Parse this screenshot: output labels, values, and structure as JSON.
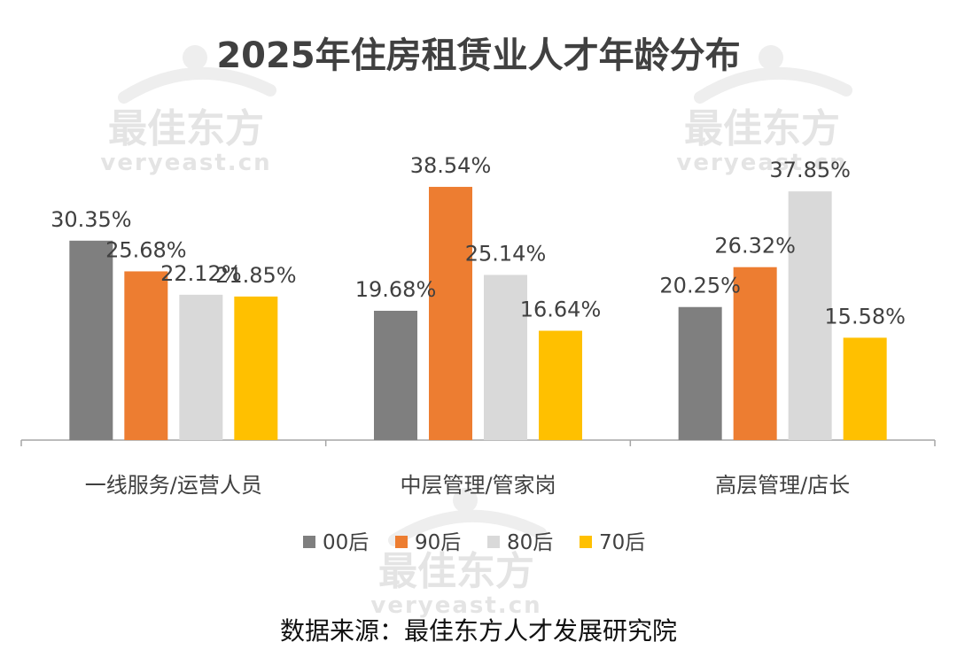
{
  "chart_data": {
    "type": "bar",
    "title": "2025年住房租赁业人才年龄分布",
    "categories": [
      "一线服务/运营人员",
      "中层管理/管家岗",
      "高层管理/店长"
    ],
    "series": [
      {
        "name": "00后",
        "color": "#7f7f7f",
        "values": [
          30.35,
          19.68,
          20.25
        ]
      },
      {
        "name": "90后",
        "color": "#ed7d31",
        "values": [
          25.68,
          38.54,
          26.32
        ]
      },
      {
        "name": "80后",
        "color": "#d9d9d9",
        "values": [
          22.12,
          25.14,
          37.85
        ]
      },
      {
        "name": "70后",
        "color": "#ffc000",
        "values": [
          21.85,
          16.64,
          15.58
        ]
      }
    ],
    "value_suffix": "%",
    "ylim": [
      0,
      50
    ],
    "grid": false,
    "legend_position": "bottom",
    "xlabel": "",
    "ylabel": ""
  },
  "watermark": {
    "text_cn": "最佳东方",
    "text_en": "veryeast.cn"
  },
  "source": "数据来源：最佳东方人才发展研究院"
}
